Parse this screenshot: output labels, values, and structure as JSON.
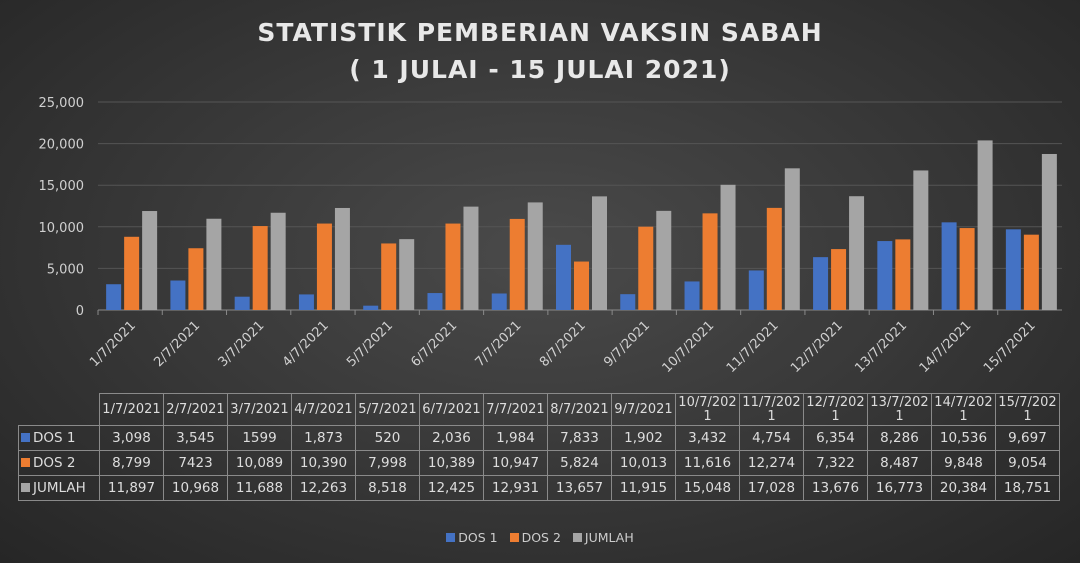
{
  "chart_data": {
    "type": "bar",
    "title": [
      "STATISTIK PEMBERIAN VAKSIN SABAH",
      "( 1 JULAI - 15 JULAI 2021)"
    ],
    "xlabel": "",
    "ylabel": "",
    "ylim": [
      0,
      25000
    ],
    "yticks": [
      0,
      5000,
      10000,
      15000,
      20000,
      25000
    ],
    "ytick_labels": [
      "0",
      "5,000",
      "10,000",
      "15,000",
      "20,000",
      "25,000"
    ],
    "grid": true,
    "legend_position": "bottom",
    "categories": [
      "1/7/2021",
      "2/7/2021",
      "3/7/2021",
      "4/7/2021",
      "5/7/2021",
      "6/7/2021",
      "7/7/2021",
      "8/7/2021",
      "9/7/2021",
      "10/7/2021",
      "11/7/2021",
      "12/7/2021",
      "13/7/2021",
      "14/7/2021",
      "15/7/2021"
    ],
    "table_headers": [
      [
        "1/7/2021"
      ],
      [
        "2/7/2021"
      ],
      [
        "3/7/2021"
      ],
      [
        "4/7/2021"
      ],
      [
        "5/7/2021"
      ],
      [
        "6/7/2021"
      ],
      [
        "7/7/2021"
      ],
      [
        "8/7/2021"
      ],
      [
        "9/7/2021"
      ],
      [
        "10/7/202",
        "1"
      ],
      [
        "11/7/202",
        "1"
      ],
      [
        "12/7/202",
        "1"
      ],
      [
        "13/7/202",
        "1"
      ],
      [
        "14/7/202",
        "1"
      ],
      [
        "15/7/202",
        "1"
      ]
    ],
    "series": [
      {
        "name": "DOS 1",
        "color": "#4472c4",
        "values": [
          3098,
          3545,
          1599,
          1873,
          520,
          2036,
          1984,
          7833,
          1902,
          3432,
          4754,
          6354,
          8286,
          10536,
          9697
        ],
        "display": [
          "3,098",
          "3,545",
          "1599",
          "1,873",
          "520",
          "2,036",
          "1,984",
          "7,833",
          "1,902",
          "3,432",
          "4,754",
          "6,354",
          "8,286",
          "10,536",
          "9,697"
        ]
      },
      {
        "name": "DOS 2",
        "color": "#ed7d31",
        "values": [
          8799,
          7423,
          10089,
          10390,
          7998,
          10389,
          10947,
          5824,
          10013,
          11616,
          12274,
          7322,
          8487,
          9848,
          9054
        ],
        "display": [
          "8,799",
          "7423",
          "10,089",
          "10,390",
          "7,998",
          "10,389",
          "10,947",
          "5,824",
          "10,013",
          "11,616",
          "12,274",
          "7,322",
          "8,487",
          "9,848",
          "9,054"
        ]
      },
      {
        "name": "JUMLAH",
        "color": "#a5a5a5",
        "values": [
          11897,
          10968,
          11688,
          12263,
          8518,
          12425,
          12931,
          13657,
          11915,
          15048,
          17028,
          13676,
          16773,
          20384,
          18751
        ],
        "display": [
          "11,897",
          "10,968",
          "11,688",
          "12,263",
          "8,518",
          "12,425",
          "12,931",
          "13,657",
          "11,915",
          "15,048",
          "17,028",
          "13,676",
          "16,773",
          "20,384",
          "18,751"
        ]
      }
    ]
  }
}
